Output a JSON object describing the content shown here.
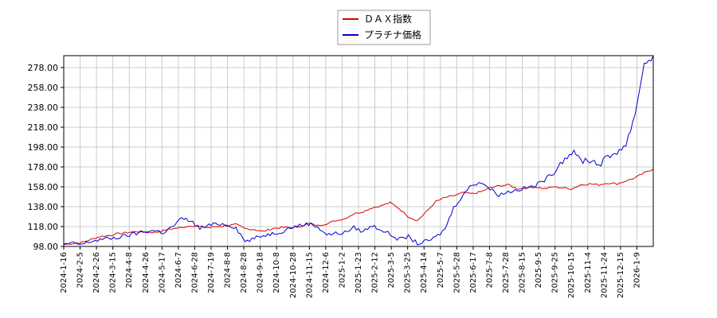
{
  "chart_data": {
    "type": "line",
    "title": "",
    "xlabel": "",
    "ylabel": "",
    "ylim": [
      98,
      290
    ],
    "y_ticks": [
      98,
      118,
      138,
      158,
      178,
      198,
      218,
      238,
      258,
      278
    ],
    "y_tick_labels": [
      "98.00",
      "118.00",
      "138.00",
      "158.00",
      "178.00",
      "198.00",
      "218.00",
      "238.00",
      "258.00",
      "278.00"
    ],
    "x_tick_labels": [
      "2024-1-16",
      "2024-2-5",
      "2024-2-26",
      "2024-3-15",
      "2024-4-8",
      "2024-4-26",
      "2024-5-17",
      "2024-6-7",
      "2024-6-28",
      "2024-7-19",
      "2024-8-8",
      "2024-8-28",
      "2024-9-18",
      "2024-10-8",
      "2024-10-28",
      "2024-11-15",
      "2024-12-6",
      "2025-1-2",
      "2025-1-23",
      "2025-2-12",
      "2025-3-5",
      "2025-3-25",
      "2025-4-14",
      "2025-5-7",
      "2025-5-28",
      "2025-6-17",
      "2025-7-8",
      "2025-7-28",
      "2025-8-15",
      "2025-9-5",
      "2025-9-25",
      "2025-10-15",
      "2025-11-4",
      "2025-11-24",
      "2025-12-15",
      "2026-1-9"
    ],
    "grid": true,
    "legend_position": "top-center",
    "series": [
      {
        "name": "ＤＡＸ指数",
        "color": "#dd0000",
        "values": [
          100,
          101,
          102,
          105,
          108,
          109,
          111,
          112,
          113,
          113,
          112,
          114,
          116,
          117,
          119,
          118,
          117,
          118,
          119,
          120,
          116,
          115,
          113,
          116,
          117,
          117,
          118,
          121,
          119,
          121,
          124,
          126,
          131,
          133,
          137,
          139,
          142,
          136,
          128,
          124,
          133,
          143,
          147,
          149,
          152,
          151,
          153,
          157,
          159,
          160,
          156,
          157,
          158,
          156,
          158,
          157,
          156,
          160,
          161,
          160,
          162,
          161,
          164,
          167,
          172,
          176
        ]
      },
      {
        "name": "プラチナ価格",
        "color": "#0000cc",
        "values": [
          100,
          101,
          100,
          103,
          105,
          106,
          107,
          109,
          111,
          113,
          114,
          112,
          118,
          126,
          124,
          116,
          119,
          121,
          120,
          117,
          103,
          106,
          109,
          111,
          113,
          117,
          119,
          121,
          118,
          110,
          111,
          112,
          117,
          113,
          119,
          115,
          110,
          105,
          108,
          101,
          103,
          107,
          115,
          137,
          150,
          160,
          163,
          156,
          150,
          153,
          155,
          157,
          159,
          165,
          172,
          185,
          193,
          185,
          185,
          181,
          187,
          194,
          200,
          232,
          282,
          290
        ]
      }
    ]
  }
}
